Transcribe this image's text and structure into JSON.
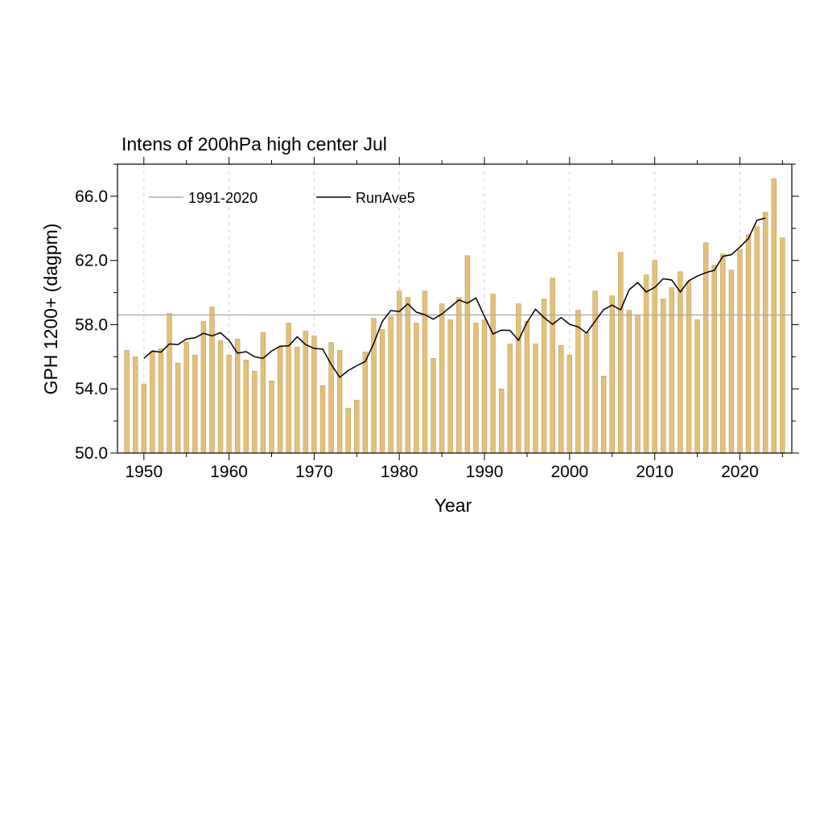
{
  "chart_data": {
    "type": "bar",
    "title": "Intens of 200hPa high center Jul",
    "xlabel": "Year",
    "ylabel": "GPH 1200+ (dagpm)",
    "xlim": [
      1946.9,
      2026.1
    ],
    "ylim": [
      50.0,
      68.0
    ],
    "x_ticks": [
      1950,
      1960,
      1970,
      1980,
      1990,
      2000,
      2010,
      2020
    ],
    "y_ticks": [
      50.0,
      54.0,
      58.0,
      62.0,
      66.0
    ],
    "y_tick_labels": [
      "50.0",
      "54.0",
      "58.0",
      "62.0",
      "66.0"
    ],
    "y_minor_step": 2.0,
    "x_minor_step": 5,
    "grid": "vertical dashed at major x ticks",
    "legend_position": "top-left",
    "bar_color": "#e3c07a",
    "bar_edge_color": "#b89550",
    "climatology": {
      "name": "1991-2020",
      "value": 58.6,
      "color": "#aaaaaa"
    },
    "running_mean": {
      "name": "RunAve5",
      "window": 5,
      "color": "#000000"
    },
    "years": [
      1948,
      1949,
      1950,
      1951,
      1952,
      1953,
      1954,
      1955,
      1956,
      1957,
      1958,
      1959,
      1960,
      1961,
      1962,
      1963,
      1964,
      1965,
      1966,
      1967,
      1968,
      1969,
      1970,
      1971,
      1972,
      1973,
      1974,
      1975,
      1976,
      1977,
      1978,
      1979,
      1980,
      1981,
      1982,
      1983,
      1984,
      1985,
      1986,
      1987,
      1988,
      1989,
      1990,
      1991,
      1992,
      1993,
      1994,
      1995,
      1996,
      1997,
      1998,
      1999,
      2000,
      2001,
      2002,
      2003,
      2004,
      2005,
      2006,
      2007,
      2008,
      2009,
      2010,
      2011,
      2012,
      2013,
      2014,
      2015,
      2016,
      2017,
      2018,
      2019,
      2020,
      2021,
      2022,
      2023,
      2024,
      2025
    ],
    "values": [
      56.4,
      56.0,
      54.3,
      56.3,
      56.5,
      58.7,
      55.6,
      56.9,
      56.1,
      58.2,
      59.1,
      57.0,
      56.1,
      57.1,
      55.8,
      55.1,
      57.5,
      54.5,
      56.6,
      58.1,
      56.6,
      57.6,
      57.3,
      54.2,
      56.9,
      56.4,
      52.8,
      53.3,
      56.3,
      58.4,
      57.7,
      58.5,
      60.1,
      59.7,
      58.1,
      60.1,
      55.9,
      59.3,
      58.3,
      59.7,
      62.3,
      58.1,
      58.3,
      59.9,
      54.0,
      56.8,
      59.3,
      58.2,
      56.8,
      59.6,
      60.9,
      56.7,
      56.1,
      58.9,
      57.5,
      60.1,
      54.8,
      59.8,
      62.5,
      58.9,
      58.6,
      61.1,
      62.0,
      59.6,
      60.3,
      61.3,
      60.7,
      58.3,
      63.1,
      61.7,
      62.4,
      61.4,
      62.7,
      63.6,
      64.1,
      65.0,
      67.1,
      63.4
    ]
  }
}
